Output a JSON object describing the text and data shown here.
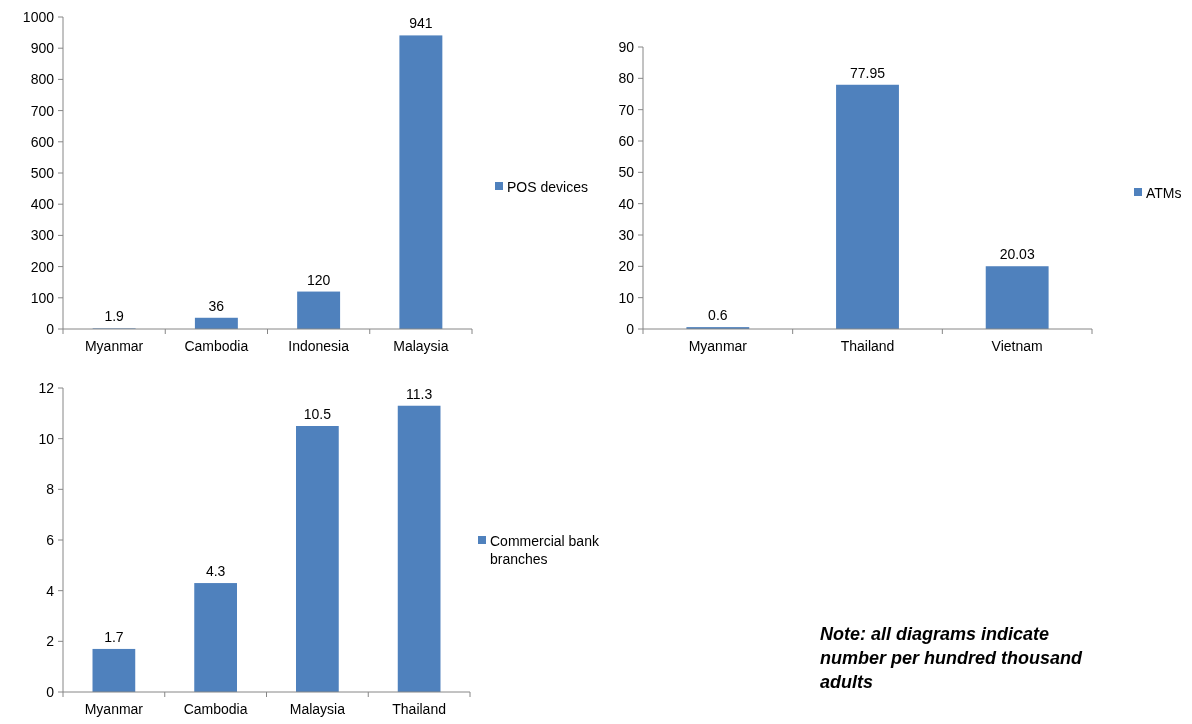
{
  "chart_data": [
    {
      "type": "bar",
      "categories": [
        "Myanmar",
        "Cambodia",
        "Indonesia",
        "Malaysia"
      ],
      "series": [
        {
          "name": "POS devices",
          "color": "#4f81bd",
          "values": [
            1.9,
            36,
            120,
            941
          ]
        }
      ],
      "ylim": [
        0,
        1000
      ],
      "yticks": [
        0,
        100,
        200,
        300,
        400,
        500,
        600,
        700,
        800,
        900,
        1000
      ],
      "data_labels": true,
      "legend": "right"
    },
    {
      "type": "bar",
      "categories": [
        "Myanmar",
        "Thailand",
        "Vietnam"
      ],
      "series": [
        {
          "name": "ATMs",
          "color": "#4f81bd",
          "values": [
            0.6,
            77.95,
            20.03
          ]
        }
      ],
      "ylim": [
        0,
        90
      ],
      "yticks": [
        0,
        10,
        20,
        30,
        40,
        50,
        60,
        70,
        80,
        90
      ],
      "data_labels": true,
      "legend": "right"
    },
    {
      "type": "bar",
      "categories": [
        "Myanmar",
        "Cambodia",
        "Malaysia",
        "Thailand"
      ],
      "series": [
        {
          "name": "Commercial bank branches",
          "color": "#4f81bd",
          "values": [
            1.7,
            4.3,
            10.5,
            11.3
          ]
        }
      ],
      "ylim": [
        0,
        12
      ],
      "yticks": [
        0,
        2,
        4,
        6,
        8,
        10,
        12
      ],
      "data_labels": true,
      "legend": "right"
    },
    {
      "type": "other",
      "annotations": [
        "Note: all diagrams indicate number per hundred thousand adults"
      ]
    }
  ]
}
